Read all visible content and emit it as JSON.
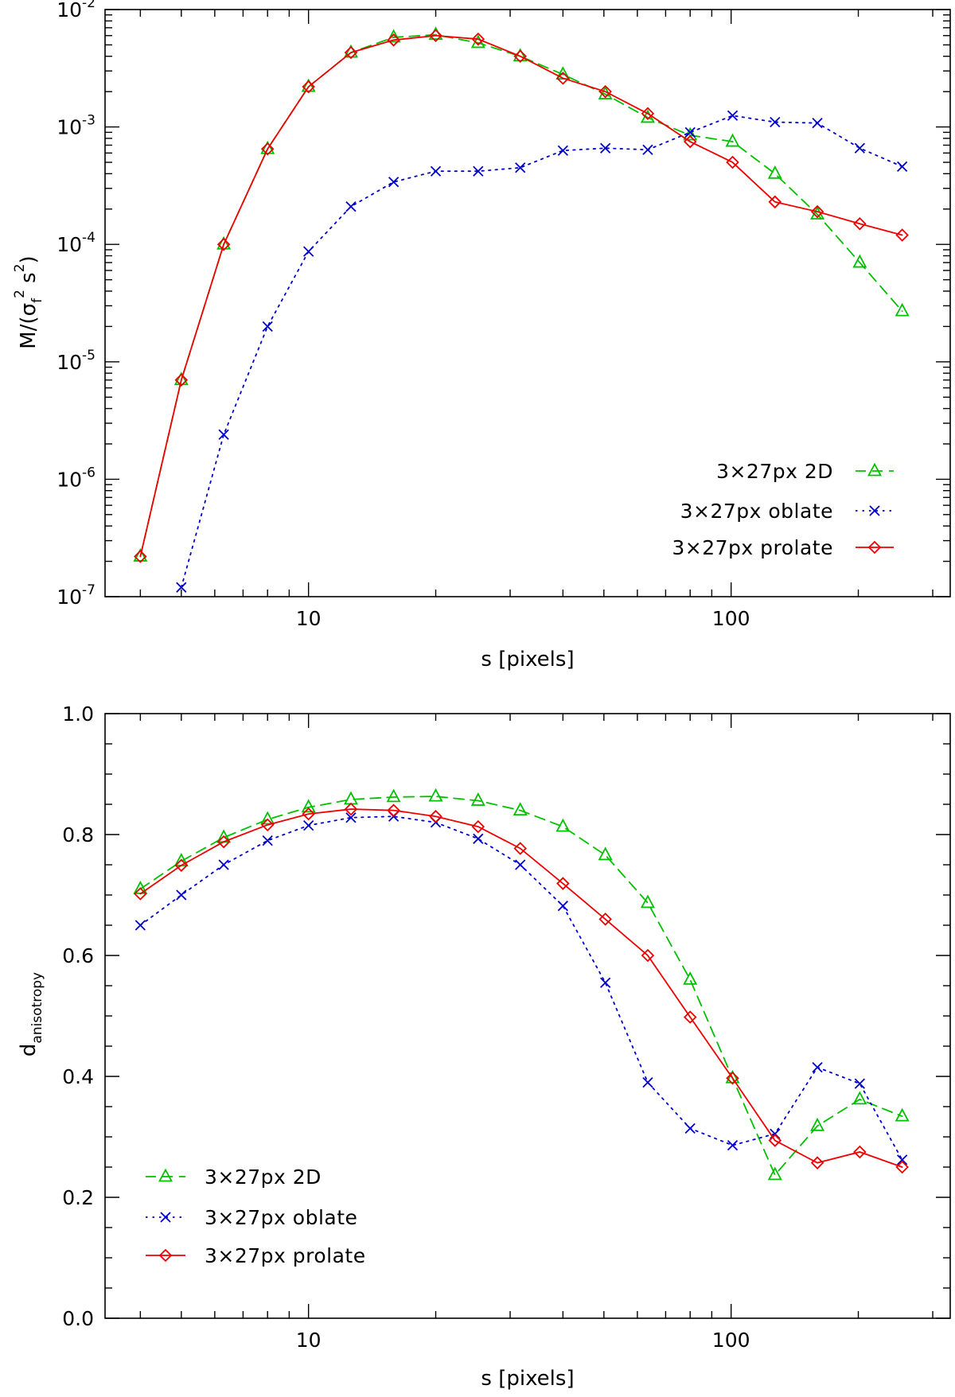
{
  "chart_data": [
    {
      "type": "line",
      "xscale": "log",
      "yscale": "log",
      "xlabel": "s [pixels]",
      "ylabel_html": "M/(σ_f^2 s^2)",
      "ylabel": {
        "prefix": "M/(σ",
        "sub": "f",
        "sup1": "2",
        "mid": " s",
        "sup2": "2",
        "suffix": ")"
      },
      "xlim": [
        3.3,
        330
      ],
      "ylim": [
        1e-07,
        0.01
      ],
      "x_ticks": [
        {
          "value": 10,
          "label": "10"
        },
        {
          "value": 100,
          "label": "100"
        }
      ],
      "y_ticks": [
        {
          "value": 1e-07,
          "base": "10",
          "exp": "-7"
        },
        {
          "value": 1e-06,
          "base": "10",
          "exp": "-6"
        },
        {
          "value": 1e-05,
          "base": "10",
          "exp": "-5"
        },
        {
          "value": 0.0001,
          "base": "10",
          "exp": "-4"
        },
        {
          "value": 0.001,
          "base": "10",
          "exp": "-3"
        },
        {
          "value": 0.01,
          "base": "10",
          "exp": "-2"
        }
      ],
      "legend_position": "bottom-right",
      "series": [
        {
          "name": "3×27px 2D",
          "color": "#00c000",
          "dash": "dashed",
          "marker": "triangle",
          "x": [
            4,
            5,
            6.3,
            8,
            10,
            12.6,
            15.9,
            20,
            25.2,
            31.7,
            40,
            50.4,
            63.5,
            80,
            100.8,
            127,
            160,
            201.6,
            254
          ],
          "y": [
            2.2e-07,
            7e-06,
            0.0001,
            0.00065,
            0.0022,
            0.0043,
            0.0058,
            0.0061,
            0.0052,
            0.004,
            0.0028,
            0.0019,
            0.0012,
            0.00085,
            0.00075,
            0.0004,
            0.00018,
            7e-05,
            2.7e-05
          ]
        },
        {
          "name": "3×27px oblate",
          "color": "#0000cc",
          "dash": "dotted",
          "marker": "x",
          "x": [
            5,
            6.3,
            8,
            10,
            12.6,
            15.9,
            20,
            25.2,
            31.7,
            40,
            50.4,
            63.5,
            80,
            100.8,
            127,
            160,
            201.6,
            254
          ],
          "y": [
            1.2e-07,
            2.4e-06,
            2e-05,
            8.7e-05,
            0.00021,
            0.00034,
            0.00042,
            0.00042,
            0.00045,
            0.00063,
            0.00066,
            0.00064,
            0.0009,
            0.00125,
            0.0011,
            0.00108,
            0.00066,
            0.00046
          ]
        },
        {
          "name": "3×27px prolate",
          "color": "#ee0000",
          "dash": "solid",
          "marker": "diamond",
          "x": [
            4,
            5,
            6.3,
            8,
            10,
            12.6,
            15.9,
            20,
            25.2,
            31.7,
            40,
            50.4,
            63.5,
            80,
            100.8,
            127,
            160,
            201.6,
            254
          ],
          "y": [
            2.2e-07,
            7e-06,
            0.0001,
            0.00065,
            0.0022,
            0.0043,
            0.0055,
            0.006,
            0.0056,
            0.004,
            0.0026,
            0.002,
            0.0013,
            0.00075,
            0.0005,
            0.00023,
            0.00019,
            0.00015,
            0.00012
          ]
        }
      ]
    },
    {
      "type": "line",
      "xscale": "log",
      "yscale": "linear",
      "xlabel": "s [pixels]",
      "ylabel": {
        "main": "d",
        "sub": "anisotropy"
      },
      "xlim": [
        3.3,
        330
      ],
      "ylim": [
        0,
        1
      ],
      "x_ticks": [
        {
          "value": 10,
          "label": "10"
        },
        {
          "value": 100,
          "label": "100"
        }
      ],
      "y_ticks": [
        {
          "value": 0.0,
          "label": "0.0"
        },
        {
          "value": 0.2,
          "label": "0.2"
        },
        {
          "value": 0.4,
          "label": "0.4"
        },
        {
          "value": 0.6,
          "label": "0.6"
        },
        {
          "value": 0.8,
          "label": "0.8"
        },
        {
          "value": 1.0,
          "label": "1.0"
        }
      ],
      "legend_position": "bottom-left",
      "series": [
        {
          "name": "3×27px 2D",
          "color": "#00c000",
          "dash": "dashed",
          "marker": "triangle",
          "x": [
            4,
            5,
            6.3,
            8,
            10,
            12.6,
            15.9,
            20,
            25.2,
            31.7,
            40,
            50.4,
            63.5,
            80,
            100.8,
            127,
            160,
            201.6,
            254
          ],
          "y": [
            0.71,
            0.756,
            0.795,
            0.825,
            0.845,
            0.858,
            0.862,
            0.863,
            0.856,
            0.84,
            0.813,
            0.766,
            0.687,
            0.56,
            0.397,
            0.237,
            0.318,
            0.362,
            0.334
          ]
        },
        {
          "name": "3×27px oblate",
          "color": "#0000cc",
          "dash": "dotted",
          "marker": "x",
          "x": [
            4,
            5,
            6.3,
            8,
            10,
            12.6,
            15.9,
            20,
            25.2,
            31.7,
            40,
            50.4,
            63.5,
            80,
            100.8,
            127,
            160,
            201.6,
            254
          ],
          "y": [
            0.65,
            0.7,
            0.75,
            0.79,
            0.815,
            0.828,
            0.83,
            0.82,
            0.793,
            0.75,
            0.682,
            0.555,
            0.39,
            0.314,
            0.286,
            0.305,
            0.415,
            0.388,
            0.262
          ]
        },
        {
          "name": "3×27px prolate",
          "color": "#ee0000",
          "dash": "solid",
          "marker": "diamond",
          "x": [
            4,
            5,
            6.3,
            8,
            10,
            12.6,
            15.9,
            20,
            25.2,
            31.7,
            40,
            50.4,
            63.5,
            80,
            100.8,
            127,
            160,
            201.6,
            254
          ],
          "y": [
            0.702,
            0.749,
            0.788,
            0.816,
            0.834,
            0.842,
            0.84,
            0.83,
            0.813,
            0.777,
            0.719,
            0.66,
            0.6,
            0.498,
            0.397,
            0.294,
            0.257,
            0.275,
            0.25
          ]
        }
      ]
    }
  ]
}
